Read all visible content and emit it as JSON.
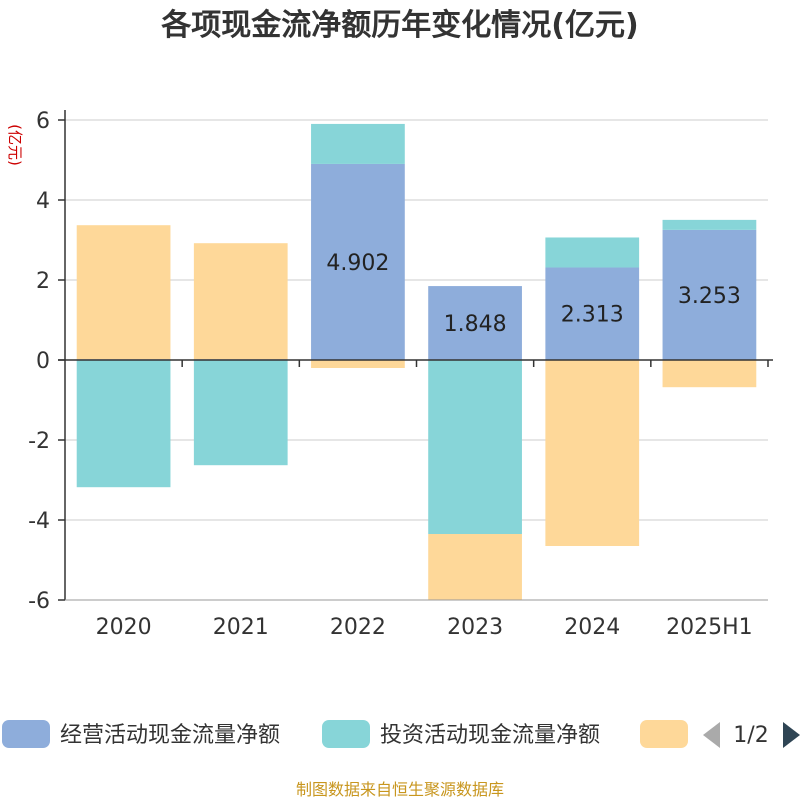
{
  "chart_data": {
    "type": "bar",
    "stacked": true,
    "title": "各项现金流净额历年变化情况(亿元)",
    "unit_label": "(亿元)",
    "categories": [
      "2020",
      "2021",
      "2022",
      "2023",
      "2024",
      "2025H1"
    ],
    "ylim": [
      -6,
      6
    ],
    "yticks": [
      -6,
      -4,
      -2,
      0,
      2,
      4,
      6
    ],
    "grid": true,
    "series": [
      {
        "name": "经营活动现金流量净额",
        "color": "#8eaddb",
        "values": [
          0.02,
          0.02,
          4.902,
          1.848,
          2.313,
          3.253
        ],
        "labels": [
          "",
          "",
          "4.902",
          "1.848",
          "2.313",
          "3.253"
        ]
      },
      {
        "name": "投资活动现金流量净额",
        "color": "#87d5d8",
        "values": [
          -3.18,
          -2.63,
          1.0,
          -4.35,
          0.75,
          0.25
        ]
      },
      {
        "name": "",
        "color": "#fed899",
        "values": [
          3.35,
          2.9,
          -0.2,
          -1.65,
          -4.65,
          -0.68
        ]
      }
    ],
    "legend": {
      "position": "bottom",
      "page": "1/2"
    },
    "source": "制图数据来自恒生聚源数据库"
  }
}
